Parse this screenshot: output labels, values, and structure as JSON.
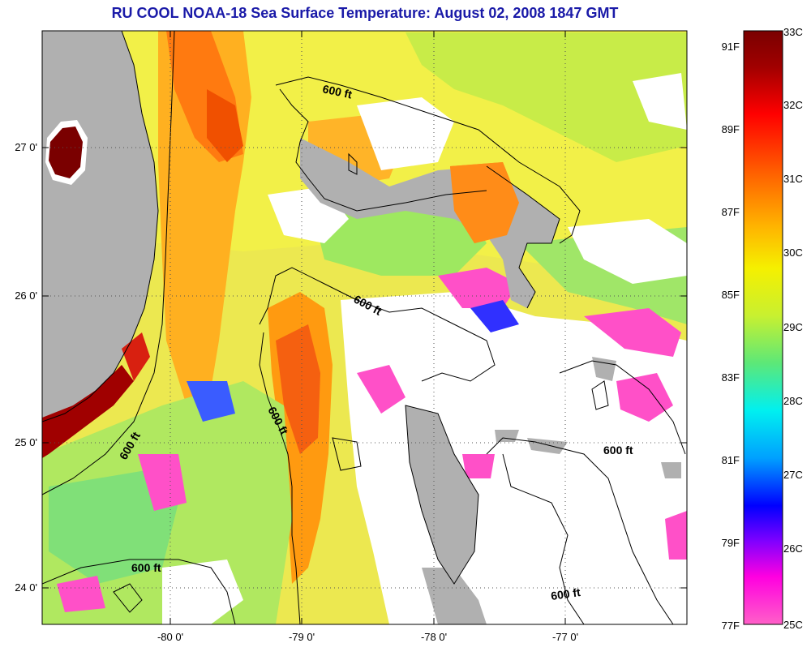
{
  "title": "RU COOL  NOAA-18  Sea Surface Temperature:  August 02, 2008 1847 GMT",
  "map": {
    "lon_labels": [
      "-80 0'",
      "-79 0'",
      "-78 0'",
      "-77 0'"
    ],
    "lat_labels": [
      "27 0'",
      "26 0'",
      "25 0'",
      "24 0'"
    ],
    "contour_labels": [
      "600 ft",
      "600 ft",
      "600 ft",
      "600 ft",
      "600 ft",
      "600 ft"
    ]
  },
  "colorbar": {
    "celsius_labels": [
      "33C",
      "32C",
      "31C",
      "30C",
      "29C",
      "28C",
      "27C",
      "26C",
      "25C"
    ],
    "fahrenheit_labels": [
      "91F",
      "89F",
      "87F",
      "85F",
      "83F",
      "81F",
      "79F",
      "77F"
    ],
    "colors": [
      "#7a0000",
      "#c00000",
      "#ff0000",
      "#ff5a00",
      "#ff9a00",
      "#ffd200",
      "#f5f500",
      "#b8f040",
      "#5ce878",
      "#00f0e0",
      "#00a8ff",
      "#0000ff",
      "#ff00e0",
      "#ff50c8"
    ]
  }
}
